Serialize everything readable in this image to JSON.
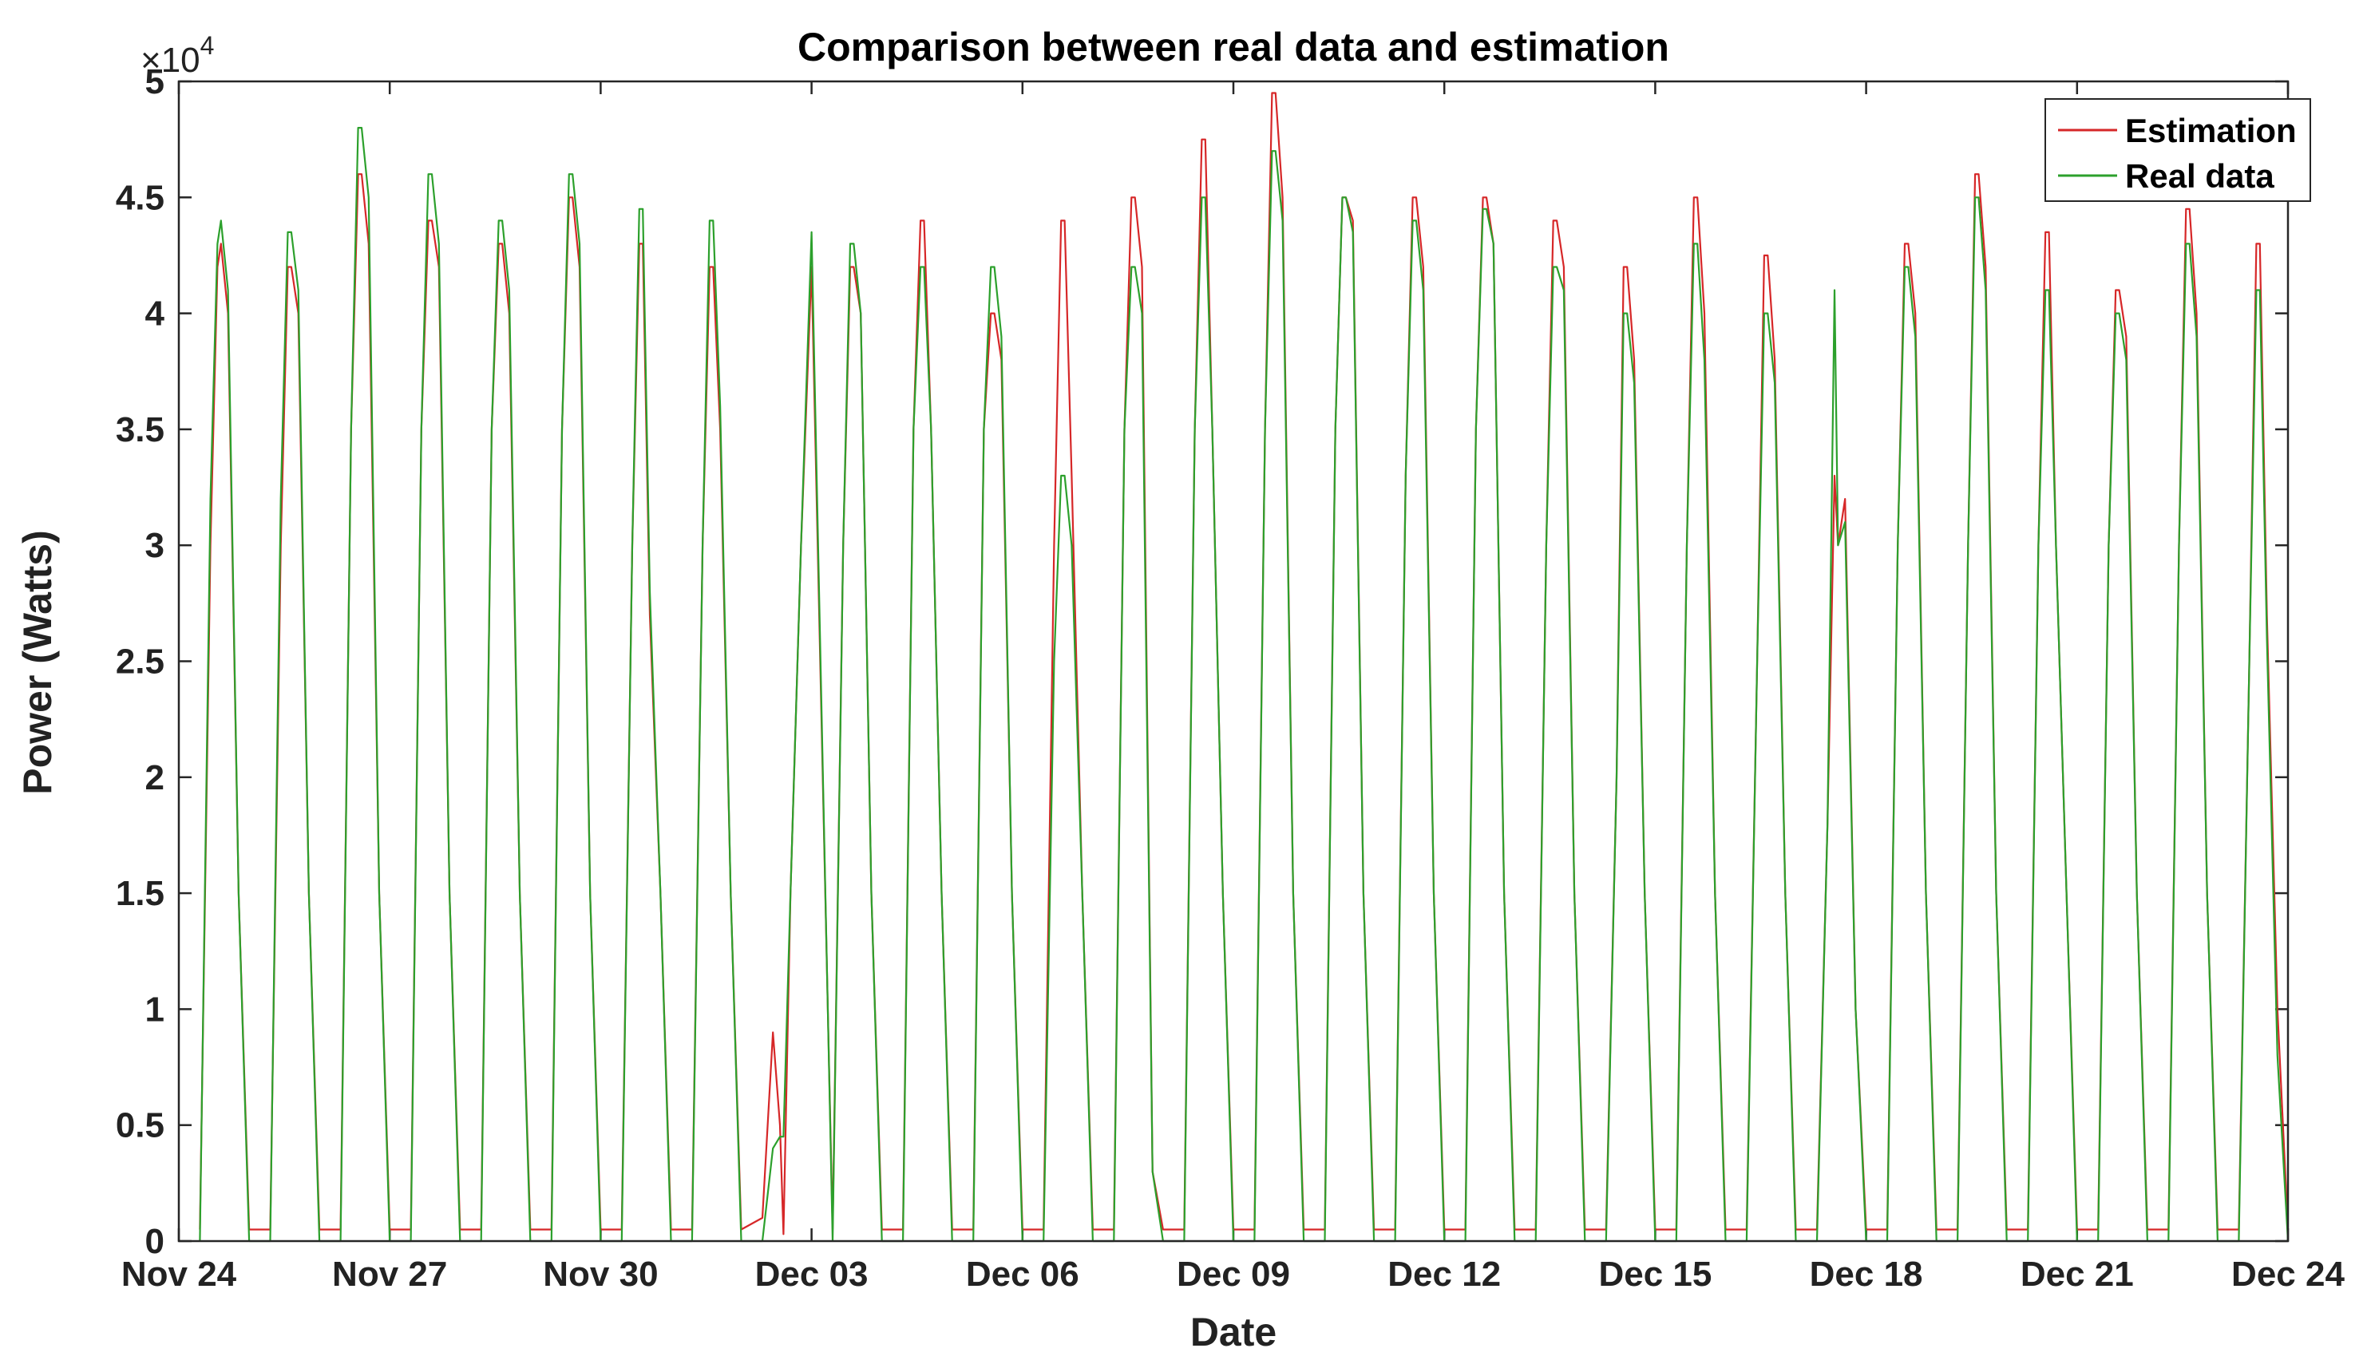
{
  "chart_data": {
    "type": "line",
    "title": "Comparison between real data and estimation",
    "xlabel": "Date",
    "ylabel": "Power (Watts)",
    "y_multiplier": "×10",
    "y_exponent": "4",
    "ylim": [
      0,
      5
    ],
    "yticks": [
      0,
      0.5,
      1,
      1.5,
      2,
      2.5,
      3,
      3.5,
      4,
      4.5,
      5
    ],
    "ytick_labels": [
      "0",
      "0.5",
      "1",
      "1.5",
      "2",
      "2.5",
      "3",
      "3.5",
      "4",
      "4.5",
      "5"
    ],
    "xlim": [
      0,
      30
    ],
    "xticks": [
      0,
      3,
      6,
      9,
      12,
      15,
      18,
      21,
      24,
      27,
      30
    ],
    "xtick_labels": [
      "Nov 24",
      "Nov 27",
      "Nov 30",
      "Dec 03",
      "Dec 06",
      "Dec 09",
      "Dec 12",
      "Dec 15",
      "Dec 18",
      "Dec 21",
      "Dec 24"
    ],
    "legend_position": "top-right",
    "colors": {
      "estimation": "#d62728",
      "real": "#2ca02c"
    },
    "series": [
      {
        "name": "Estimation",
        "color": "#d62728",
        "x": [
          0.3,
          0.45,
          0.55,
          0.6,
          0.7,
          0.85,
          1.0,
          1.3,
          1.45,
          1.55,
          1.6,
          1.7,
          1.85,
          2.0,
          2.3,
          2.45,
          2.55,
          2.6,
          2.7,
          2.85,
          3.0,
          3.3,
          3.45,
          3.55,
          3.6,
          3.7,
          3.85,
          4.0,
          4.3,
          4.45,
          4.55,
          4.6,
          4.7,
          4.85,
          5.0,
          5.3,
          5.45,
          5.55,
          5.6,
          5.7,
          5.85,
          6.0,
          6.3,
          6.45,
          6.55,
          6.6,
          6.7,
          6.85,
          7.0,
          7.3,
          7.45,
          7.55,
          7.6,
          7.7,
          7.85,
          8.0,
          8.3,
          8.45,
          8.55,
          8.6,
          8.7,
          8.85,
          9.0,
          9.3,
          9.45,
          9.55,
          9.6,
          9.7,
          9.85,
          10.0,
          10.3,
          10.45,
          10.55,
          10.6,
          10.7,
          10.85,
          11.0,
          11.3,
          11.45,
          11.55,
          11.6,
          11.7,
          11.85,
          12.0,
          12.3,
          12.45,
          12.55,
          12.6,
          12.7,
          12.85,
          13.0,
          13.3,
          13.45,
          13.55,
          13.6,
          13.7,
          13.85,
          14.0,
          14.3,
          14.45,
          14.55,
          14.6,
          14.7,
          14.85,
          15.0,
          15.3,
          15.45,
          15.55,
          15.6,
          15.7,
          15.85,
          16.0,
          16.3,
          16.45,
          16.55,
          16.6,
          16.7,
          16.85,
          17.0,
          17.3,
          17.45,
          17.55,
          17.6,
          17.7,
          17.85,
          18.0,
          18.3,
          18.45,
          18.55,
          18.6,
          18.7,
          18.85,
          19.0,
          19.3,
          19.45,
          19.55,
          19.6,
          19.7,
          19.85,
          20.0,
          20.3,
          20.45,
          20.55,
          20.6,
          20.7,
          20.85,
          21.0,
          21.3,
          21.45,
          21.55,
          21.6,
          21.7,
          21.85,
          22.0,
          22.3,
          22.45,
          22.55,
          22.6,
          22.7,
          22.85,
          23.0,
          23.3,
          23.45,
          23.55,
          23.6,
          23.7,
          23.85,
          24.0,
          24.3,
          24.45,
          24.55,
          24.6,
          24.7,
          24.85,
          25.0,
          25.3,
          25.45,
          25.55,
          25.6,
          25.7,
          25.85,
          26.0,
          26.3,
          26.45,
          26.55,
          26.6,
          26.7,
          26.85,
          27.0,
          27.3,
          27.45,
          27.55,
          27.6,
          27.7,
          27.85,
          28.0,
          28.3,
          28.45,
          28.55,
          28.6,
          28.7,
          28.85,
          29.0,
          29.3,
          29.45,
          29.55,
          29.6,
          29.7,
          29.85,
          30.0
        ],
        "y": [
          0.05,
          3.0,
          4.2,
          4.3,
          4.0,
          1.5,
          0.05,
          0.05,
          3.0,
          4.2,
          4.2,
          4.0,
          1.5,
          0.05,
          0.05,
          3.5,
          4.6,
          4.6,
          4.3,
          1.5,
          0.05,
          0.05,
          3.5,
          4.4,
          4.4,
          4.2,
          1.5,
          0.05,
          0.05,
          3.5,
          4.3,
          4.3,
          4.0,
          1.5,
          0.05,
          0.05,
          3.5,
          4.5,
          4.5,
          4.2,
          1.5,
          0.05,
          0.05,
          3.0,
          4.3,
          4.3,
          2.7,
          1.5,
          0.05,
          0.05,
          3.0,
          4.2,
          4.2,
          3.5,
          1.5,
          0.05,
          0.1,
          0.9,
          0.5,
          0.03,
          1.5,
          3.0,
          4.2,
          0.05,
          3.0,
          4.2,
          4.2,
          4.0,
          1.5,
          0.05,
          0.05,
          3.5,
          4.4,
          4.4,
          3.5,
          1.5,
          0.05,
          0.05,
          3.5,
          4.0,
          4.0,
          3.8,
          1.5,
          0.05,
          0.05,
          3.0,
          4.4,
          4.4,
          3.3,
          1.5,
          0.05,
          0.05,
          3.5,
          4.5,
          4.5,
          4.2,
          0.3,
          0.05,
          0.05,
          3.5,
          4.75,
          4.75,
          3.5,
          1.5,
          0.05,
          0.05,
          3.5,
          4.95,
          4.95,
          4.5,
          1.5,
          0.05,
          0.05,
          3.5,
          4.5,
          4.5,
          4.4,
          1.5,
          0.05,
          0.05,
          3.3,
          4.5,
          4.5,
          4.2,
          1.5,
          0.05,
          0.05,
          3.5,
          4.5,
          4.5,
          4.3,
          1.5,
          0.05,
          0.05,
          3.0,
          4.4,
          4.4,
          4.2,
          1.5,
          0.05,
          0.05,
          2.0,
          4.2,
          4.2,
          3.8,
          1.5,
          0.05,
          0.05,
          3.0,
          4.5,
          4.5,
          4.0,
          1.5,
          0.05,
          0.05,
          2.5,
          4.25,
          4.25,
          3.8,
          1.5,
          0.05,
          0.05,
          1.8,
          3.3,
          3.0,
          3.2,
          1.0,
          0.05,
          0.05,
          3.0,
          4.3,
          4.3,
          4.0,
          1.5,
          0.05,
          0.05,
          3.0,
          4.6,
          4.6,
          4.2,
          1.5,
          0.05,
          0.05,
          3.0,
          4.35,
          4.35,
          3.0,
          1.5,
          0.05,
          0.05,
          3.0,
          4.1,
          4.1,
          3.9,
          1.5,
          0.05,
          0.05,
          3.0,
          4.45,
          4.45,
          4.0,
          1.5,
          0.05,
          0.05,
          2.5,
          4.3,
          4.3,
          2.7,
          1.0,
          0.05
        ]
      },
      {
        "name": "Real data",
        "color": "#2ca02c",
        "x": [
          0.3,
          0.45,
          0.55,
          0.6,
          0.7,
          0.85,
          1.0,
          1.3,
          1.45,
          1.55,
          1.6,
          1.7,
          1.85,
          2.0,
          2.3,
          2.45,
          2.55,
          2.6,
          2.7,
          2.85,
          3.0,
          3.3,
          3.45,
          3.55,
          3.6,
          3.7,
          3.85,
          4.0,
          4.3,
          4.45,
          4.55,
          4.6,
          4.7,
          4.85,
          5.0,
          5.3,
          5.45,
          5.55,
          5.6,
          5.7,
          5.85,
          6.0,
          6.3,
          6.45,
          6.55,
          6.6,
          6.7,
          6.85,
          7.0,
          7.3,
          7.45,
          7.55,
          7.6,
          7.7,
          7.85,
          8.0,
          8.3,
          8.45,
          8.55,
          8.6,
          8.7,
          8.85,
          9.0,
          9.3,
          9.45,
          9.55,
          9.6,
          9.7,
          9.85,
          10.0,
          10.3,
          10.45,
          10.55,
          10.6,
          10.7,
          10.85,
          11.0,
          11.3,
          11.45,
          11.55,
          11.6,
          11.7,
          11.85,
          12.0,
          12.3,
          12.45,
          12.55,
          12.6,
          12.7,
          12.85,
          13.0,
          13.3,
          13.45,
          13.55,
          13.6,
          13.7,
          13.85,
          14.0,
          14.3,
          14.45,
          14.55,
          14.6,
          14.7,
          14.85,
          15.0,
          15.3,
          15.45,
          15.55,
          15.6,
          15.7,
          15.85,
          16.0,
          16.3,
          16.45,
          16.55,
          16.6,
          16.7,
          16.85,
          17.0,
          17.3,
          17.45,
          17.55,
          17.6,
          17.7,
          17.85,
          18.0,
          18.3,
          18.45,
          18.55,
          18.6,
          18.7,
          18.85,
          19.0,
          19.3,
          19.45,
          19.55,
          19.6,
          19.7,
          19.85,
          20.0,
          20.3,
          20.45,
          20.55,
          20.6,
          20.7,
          20.85,
          21.0,
          21.3,
          21.45,
          21.55,
          21.6,
          21.7,
          21.85,
          22.0,
          22.3,
          22.45,
          22.55,
          22.6,
          22.7,
          22.85,
          23.0,
          23.3,
          23.45,
          23.55,
          23.6,
          23.7,
          23.85,
          24.0,
          24.3,
          24.45,
          24.55,
          24.6,
          24.7,
          24.85,
          25.0,
          25.3,
          25.45,
          25.55,
          25.6,
          25.7,
          25.85,
          26.0,
          26.3,
          26.45,
          26.55,
          26.6,
          26.7,
          26.85,
          27.0,
          27.3,
          27.45,
          27.55,
          27.6,
          27.7,
          27.85,
          28.0,
          28.3,
          28.45,
          28.55,
          28.6,
          28.7,
          28.85,
          29.0,
          29.3,
          29.45,
          29.55,
          29.6,
          29.7,
          29.85,
          30.0
        ],
        "y": [
          0.0,
          3.2,
          4.3,
          4.4,
          4.1,
          1.5,
          0.0,
          0.0,
          3.2,
          4.35,
          4.35,
          4.1,
          1.5,
          0.0,
          0.0,
          3.5,
          4.8,
          4.8,
          4.5,
          1.5,
          0.0,
          0.0,
          3.5,
          4.6,
          4.6,
          4.3,
          1.5,
          0.0,
          0.0,
          3.5,
          4.4,
          4.4,
          4.1,
          1.5,
          0.0,
          0.0,
          3.5,
          4.6,
          4.6,
          4.3,
          1.5,
          0.0,
          0.0,
          3.0,
          4.45,
          4.45,
          2.8,
          1.5,
          0.0,
          0.0,
          3.0,
          4.4,
          4.4,
          3.6,
          1.5,
          0.0,
          0.0,
          0.4,
          0.45,
          0.45,
          1.5,
          3.0,
          4.35,
          0.0,
          3.0,
          4.3,
          4.3,
          4.0,
          1.5,
          0.0,
          0.0,
          3.5,
          4.2,
          4.2,
          3.5,
          1.5,
          0.0,
          0.0,
          3.5,
          4.2,
          4.2,
          3.9,
          1.5,
          0.0,
          0.0,
          2.5,
          3.3,
          3.3,
          3.0,
          1.5,
          0.0,
          0.0,
          3.5,
          4.2,
          4.2,
          4.0,
          0.3,
          0.0,
          0.0,
          3.5,
          4.5,
          4.5,
          3.5,
          1.5,
          0.0,
          0.0,
          3.5,
          4.7,
          4.7,
          4.4,
          1.5,
          0.0,
          0.0,
          3.5,
          4.5,
          4.5,
          4.35,
          1.5,
          0.0,
          0.0,
          3.3,
          4.4,
          4.4,
          4.1,
          1.5,
          0.0,
          0.0,
          3.5,
          4.45,
          4.45,
          4.3,
          1.5,
          0.0,
          0.0,
          3.0,
          4.2,
          4.2,
          4.1,
          1.5,
          0.0,
          0.0,
          2.0,
          4.0,
          4.0,
          3.7,
          1.5,
          0.0,
          0.0,
          3.0,
          4.3,
          4.3,
          3.8,
          1.5,
          0.0,
          0.0,
          2.5,
          4.0,
          4.0,
          3.7,
          1.5,
          0.0,
          0.0,
          1.8,
          4.1,
          3.0,
          3.1,
          1.0,
          0.0,
          0.0,
          3.0,
          4.2,
          4.2,
          3.9,
          1.5,
          0.0,
          0.0,
          3.0,
          4.5,
          4.5,
          4.1,
          1.5,
          0.0,
          0.0,
          3.0,
          4.1,
          4.1,
          3.0,
          1.5,
          0.0,
          0.0,
          3.0,
          4.0,
          4.0,
          3.8,
          1.5,
          0.0,
          0.0,
          3.0,
          4.3,
          4.3,
          3.9,
          1.5,
          0.0,
          0.0,
          2.5,
          4.1,
          4.1,
          2.6,
          0.8,
          0.0
        ]
      }
    ]
  }
}
